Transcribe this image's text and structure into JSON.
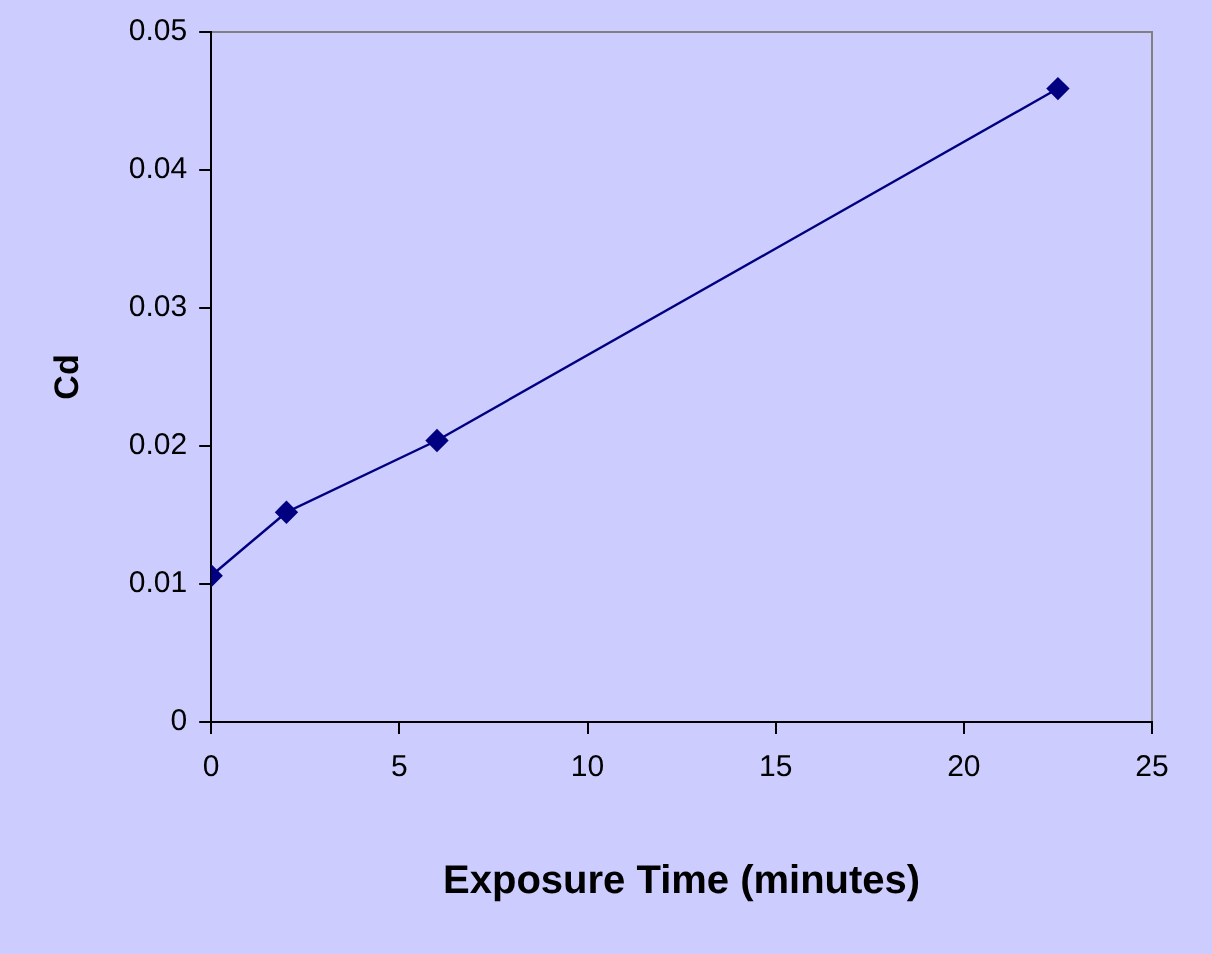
{
  "chart_data": {
    "type": "line",
    "xlabel": "Exposure Time (minutes)",
    "ylabel": "Cd",
    "x": [
      0,
      2,
      6,
      22.5
    ],
    "series": [
      {
        "color": "#000080",
        "values": [
          0.0106,
          0.0152,
          0.0204,
          0.0459
        ]
      }
    ],
    "xlim": [
      0,
      25
    ],
    "xticks": [
      0,
      5,
      10,
      15,
      20,
      25
    ],
    "ylim": [
      0,
      0.05
    ],
    "yticks": [
      0,
      0.01,
      0.02,
      0.03,
      0.04,
      0.05
    ],
    "grid": false,
    "legend": false,
    "marker": "diamond",
    "line_style": "solid"
  }
}
